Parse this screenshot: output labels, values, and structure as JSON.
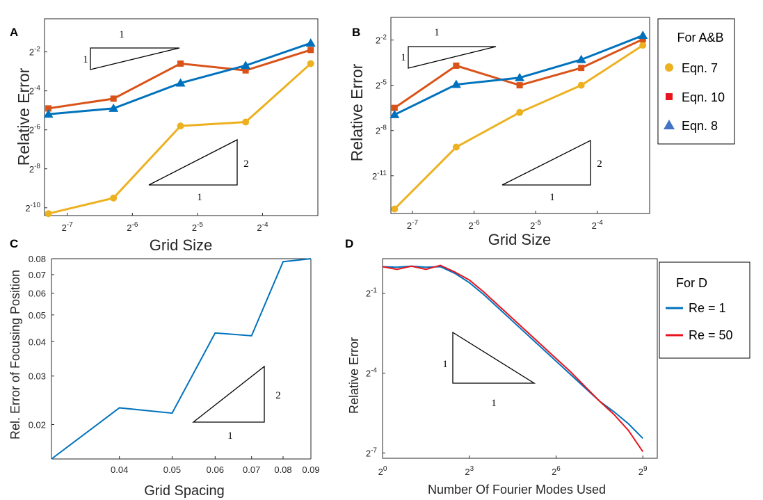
{
  "colors": {
    "yellow": "#EDB120",
    "orange": "#D95319",
    "blue": "#0072BD",
    "red": "#E8141E",
    "axis": "#262626"
  },
  "panels": {
    "A": {
      "letter": "A",
      "ylabel": "Relative Error",
      "xlabel": "Grid Size",
      "slope1_h": "1",
      "slope1_v": "1",
      "slope2_h": "1",
      "slope2_v": "2"
    },
    "B": {
      "letter": "B",
      "ylabel": "Relative Error",
      "xlabel": "Grid Size",
      "slope1_h": "1",
      "slope1_v": "1",
      "slope2_h": "1",
      "slope2_v": "2"
    },
    "C": {
      "letter": "C",
      "ylabel": "Rel. Error of Focusing Position",
      "xlabel": "Grid Spacing",
      "slope_h": "1",
      "slope_v": "2"
    },
    "D": {
      "letter": "D",
      "ylabel": "Relative Error",
      "xlabel": "Number Of Fourier Modes Used",
      "slope_h": "1",
      "slope_v": "1"
    }
  },
  "legend_ab": {
    "title": "For A&B",
    "items": [
      {
        "label": "Eqn. 7",
        "marker": "circle",
        "color": "#EDB120"
      },
      {
        "label": "Eqn. 10",
        "marker": "square",
        "color": "#E8141E"
      },
      {
        "label": "Eqn. 8",
        "marker": "triangle",
        "color": "#4472C4"
      }
    ]
  },
  "legend_d": {
    "title": "For D",
    "items": [
      {
        "label": "Re = 1",
        "color": "#0072BD"
      },
      {
        "label": "Re = 50",
        "color": "#E8141E"
      }
    ]
  },
  "chart_data": [
    {
      "panel": "A",
      "type": "line",
      "xscale": "log2",
      "yscale": "log2",
      "x_ticks": [
        "2^-7",
        "2^-6",
        "2^-5",
        "2^-4"
      ],
      "y_ticks": [
        "2^-2",
        "2^-4",
        "2^-6",
        "2^-8",
        "2^-10"
      ],
      "xlim_exp": [
        -7.35,
        -3.15
      ],
      "ylim_exp": [
        -10.4,
        -0.3
      ],
      "x_exp": [
        -7.29,
        -6.29,
        -5.26,
        -4.26,
        -3.26
      ],
      "series": [
        {
          "name": "Eqn. 7",
          "color": "#EDB120",
          "marker": "circle",
          "y_exp": [
            -10.3,
            -9.5,
            -5.8,
            -5.6,
            -2.6
          ]
        },
        {
          "name": "Eqn. 10",
          "color": "#D95319",
          "marker": "square",
          "y_exp": [
            -4.9,
            -4.4,
            -2.6,
            -2.95,
            -1.9
          ]
        },
        {
          "name": "Eqn. 8",
          "color": "#0072BD",
          "marker": "triangle",
          "y_exp": [
            -5.2,
            -4.9,
            -3.6,
            -2.7,
            -1.55
          ]
        }
      ]
    },
    {
      "panel": "B",
      "type": "line",
      "xscale": "log2",
      "yscale": "log2",
      "x_ticks": [
        "2^-7",
        "2^-6",
        "2^-5",
        "2^-4"
      ],
      "y_ticks": [
        "2^-2",
        "2^-5",
        "2^-8",
        "2^-11"
      ],
      "xlim_exp": [
        -7.35,
        -3.15
      ],
      "ylim_exp": [
        -13.5,
        -0.5
      ],
      "x_exp": [
        -7.29,
        -6.29,
        -5.26,
        -4.26,
        -3.26
      ],
      "series": [
        {
          "name": "Eqn. 7",
          "color": "#EDB120",
          "marker": "circle",
          "y_exp": [
            -13.2,
            -9.1,
            -6.8,
            -5.0,
            -2.35
          ]
        },
        {
          "name": "Eqn. 10",
          "color": "#D95319",
          "marker": "square",
          "y_exp": [
            -6.5,
            -3.7,
            -5.0,
            -3.85,
            -1.95
          ]
        },
        {
          "name": "Eqn. 8",
          "color": "#0072BD",
          "marker": "triangle",
          "y_exp": [
            -6.95,
            -4.95,
            -4.5,
            -3.3,
            -1.7
          ]
        }
      ]
    },
    {
      "panel": "C",
      "type": "line",
      "xscale": "log",
      "yscale": "log",
      "x_ticks": [
        0.04,
        0.05,
        0.06,
        0.07,
        0.08,
        0.09
      ],
      "y_ticks": [
        0.02,
        0.03,
        0.04,
        0.05,
        0.06,
        0.07,
        0.08
      ],
      "xlim": [
        0.03,
        0.09
      ],
      "ylim": [
        0.015,
        0.08
      ],
      "series": [
        {
          "name": "",
          "color": "#0072BD",
          "x": [
            0.03,
            0.04,
            0.05,
            0.06,
            0.07,
            0.08,
            0.09
          ],
          "y": [
            0.015,
            0.023,
            0.022,
            0.043,
            0.042,
            0.078,
            0.08
          ]
        }
      ]
    },
    {
      "panel": "D",
      "type": "line",
      "xscale": "log2",
      "yscale": "log2",
      "x_ticks": [
        "2^0",
        "2^3",
        "2^6",
        "2^9"
      ],
      "y_ticks": [
        "2^-1",
        "2^-4",
        "2^-7"
      ],
      "xlim_exp": [
        0,
        9.5
      ],
      "ylim_exp": [
        -7.2,
        0.3
      ],
      "series": [
        {
          "name": "Re = 1",
          "color": "#0072BD",
          "x_exp": [
            0,
            0.5,
            1,
            1.5,
            2,
            2.5,
            3,
            3.5,
            4,
            4.5,
            5,
            5.5,
            6,
            6.5,
            7,
            7.5,
            8,
            8.5,
            9
          ],
          "y_exp": [
            0.0,
            -0.02,
            0.02,
            -0.02,
            0.0,
            -0.25,
            -0.6,
            -1.05,
            -1.55,
            -2.05,
            -2.55,
            -3.05,
            -3.55,
            -4.05,
            -4.55,
            -5.05,
            -5.45,
            -5.9,
            -6.45
          ]
        },
        {
          "name": "Re = 50",
          "color": "#E8141E",
          "x_exp": [
            0,
            0.5,
            1,
            1.5,
            2,
            2.5,
            3,
            3.5,
            4,
            4.5,
            5,
            5.5,
            6,
            6.5,
            7,
            7.5,
            8,
            8.5,
            9
          ],
          "y_exp": [
            0.0,
            -0.1,
            0.02,
            -0.1,
            0.05,
            -0.2,
            -0.5,
            -0.95,
            -1.45,
            -1.95,
            -2.45,
            -2.95,
            -3.45,
            -3.95,
            -4.5,
            -5.05,
            -5.55,
            -6.15,
            -6.95
          ]
        }
      ]
    }
  ]
}
